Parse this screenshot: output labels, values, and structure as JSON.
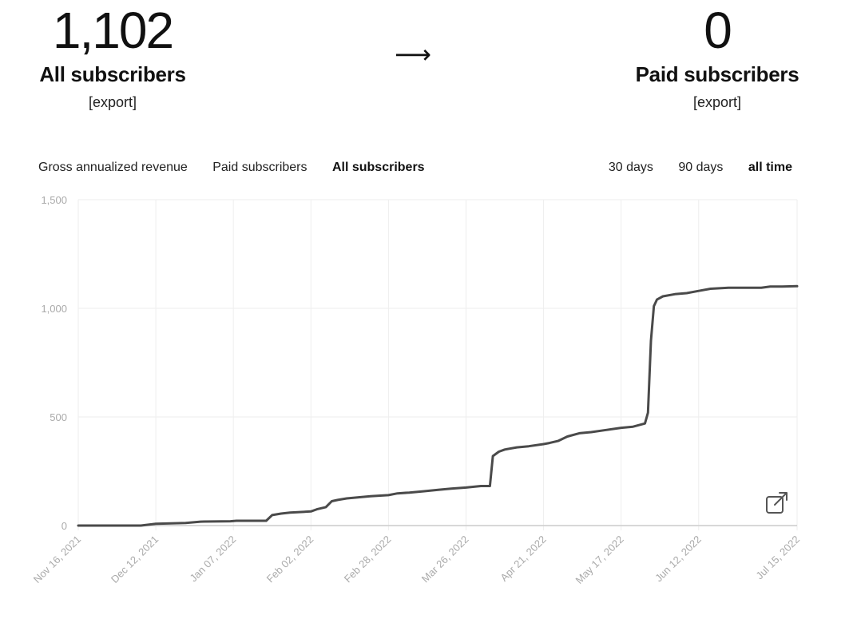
{
  "summary": {
    "all_subscribers": {
      "value": "1,102",
      "label": "All subscribers",
      "export_label": "[export]"
    },
    "arrow": "⟶",
    "paid_subscribers": {
      "value": "0",
      "label": "Paid subscribers",
      "export_label": "[export]"
    }
  },
  "metric_tabs": [
    {
      "label": "Gross annualized revenue",
      "active": false
    },
    {
      "label": "Paid subscribers",
      "active": false
    },
    {
      "label": "All subscribers",
      "active": true
    }
  ],
  "range_tabs": [
    {
      "label": "30 days",
      "active": false
    },
    {
      "label": "90 days",
      "active": false
    },
    {
      "label": "all time",
      "active": true
    }
  ],
  "open_icon": "external-link-icon",
  "colors": {
    "line": "#4a4a4a",
    "grid": "#eeeeee",
    "axis": "#cccccc",
    "tick_text": "#aaaaaa"
  },
  "chart_data": {
    "type": "line",
    "title": "",
    "xlabel": "",
    "ylabel": "",
    "ylim": [
      0,
      1500
    ],
    "yticks": [
      "0",
      "500",
      "1,000",
      "1,500"
    ],
    "ytick_values": [
      0,
      500,
      1000,
      1500
    ],
    "xticks": [
      "Nov 16, 2021",
      "Dec 12, 2021",
      "Jan 07, 2022",
      "Feb 02, 2022",
      "Feb 28, 2022",
      "Mar 26, 2022",
      "Apr 21, 2022",
      "May 17, 2022",
      "Jun 12, 2022",
      "Jul 15, 2022"
    ],
    "grid": true,
    "series": [
      {
        "x": [
          "2021-11-16",
          "2021-12-07",
          "2021-12-12",
          "2021-12-22",
          "2021-12-27",
          "2022-01-06",
          "2022-01-08",
          "2022-01-18",
          "2022-01-20",
          "2022-01-23",
          "2022-01-26",
          "2022-02-02",
          "2022-02-04",
          "2022-02-07",
          "2022-02-09",
          "2022-02-11",
          "2022-02-14",
          "2022-02-18",
          "2022-02-22",
          "2022-02-28",
          "2022-03-03",
          "2022-03-07",
          "2022-03-12",
          "2022-03-17",
          "2022-03-21",
          "2022-03-26",
          "2022-03-31",
          "2022-04-03",
          "2022-04-04",
          "2022-04-06",
          "2022-04-08",
          "2022-04-12",
          "2022-04-16",
          "2022-04-21",
          "2022-04-23",
          "2022-04-26",
          "2022-04-29",
          "2022-05-03",
          "2022-05-07",
          "2022-05-12",
          "2022-05-17",
          "2022-05-21",
          "2022-05-25",
          "2022-05-26",
          "2022-05-27",
          "2022-05-28",
          "2022-05-29",
          "2022-05-31",
          "2022-06-04",
          "2022-06-08",
          "2022-06-12",
          "2022-06-16",
          "2022-06-22",
          "2022-06-28",
          "2022-07-03",
          "2022-07-06",
          "2022-07-10",
          "2022-07-15"
        ],
        "values": [
          0,
          0,
          8,
          12,
          18,
          20,
          22,
          22,
          48,
          55,
          60,
          65,
          75,
          85,
          112,
          118,
          125,
          130,
          135,
          140,
          148,
          152,
          158,
          165,
          170,
          175,
          182,
          182,
          320,
          340,
          350,
          360,
          365,
          375,
          380,
          390,
          410,
          425,
          430,
          440,
          450,
          455,
          470,
          520,
          850,
          1010,
          1040,
          1055,
          1065,
          1070,
          1080,
          1090,
          1095,
          1095,
          1095,
          1100,
          1100,
          1102
        ]
      }
    ]
  }
}
